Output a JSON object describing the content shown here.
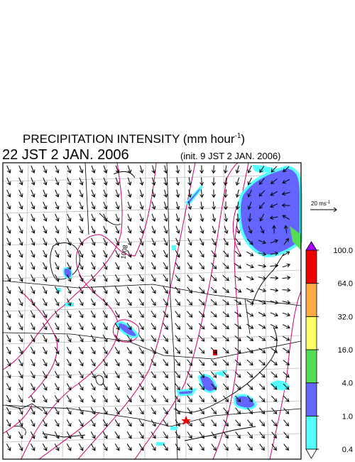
{
  "header": {
    "title": "PRECIPITATION INTENSITY (mm hour",
    "title_superscript": "-1",
    "title_close": ")",
    "time": "22 JST 2 JAN. 2006",
    "init": "(init. 9 JST 2 JAN. 2006)"
  },
  "map": {
    "contour_label": "1008",
    "reference_vector": {
      "label": "20 ms",
      "superscript": "-1"
    }
  },
  "colorbar": {
    "levels": [
      {
        "value": 0.4,
        "label": "0.4"
      },
      {
        "value": 1,
        "label": "1.0"
      },
      {
        "value": 4,
        "label": "4.0"
      },
      {
        "value": 16,
        "label": "16.0"
      },
      {
        "value": 32,
        "label": "32.0"
      },
      {
        "value": 64,
        "label": "64.0"
      },
      {
        "value": 100,
        "label": "100.0"
      }
    ],
    "colors": [
      "#55ffff",
      "#6464ff",
      "#55dd55",
      "#ffff66",
      "#ffaa44",
      "#ee0000"
    ],
    "over_color": "#aa00ff",
    "under_color": "#ffffff"
  }
}
